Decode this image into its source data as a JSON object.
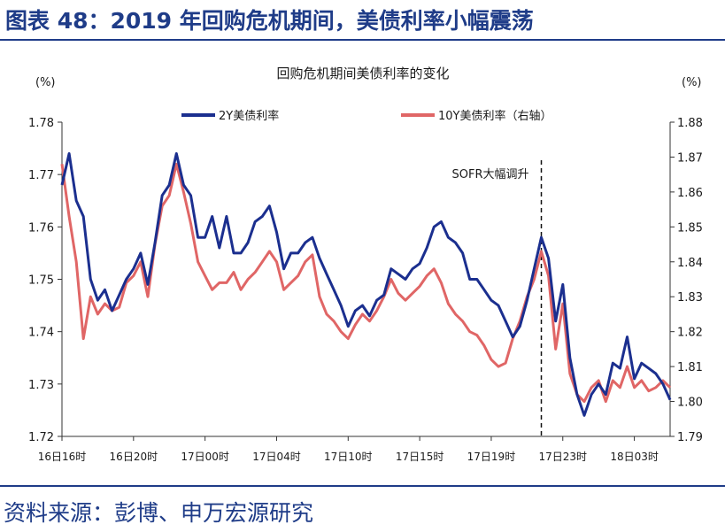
{
  "figure_title": "图表 48：2019 年回购危机期间，美债利率小幅震荡",
  "source_text": "资料来源：彭博、申万宏源研究",
  "colors": {
    "title_blue": "#1f3c88",
    "series_2y": "#1b2f8f",
    "series_10y": "#e06666"
  },
  "chart_data": {
    "type": "line",
    "title": "回购危机期间美债利率的变化",
    "y_left_unit": "(%)",
    "y_right_unit": "(%)",
    "y_left_range": [
      1.72,
      1.78
    ],
    "y_left_ticks": [
      "1.72",
      "1.73",
      "1.74",
      "1.75",
      "1.76",
      "1.77",
      "1.78"
    ],
    "y_right_range": [
      1.79,
      1.88
    ],
    "y_right_ticks": [
      "1.79",
      "1.80",
      "1.81",
      "1.82",
      "1.83",
      "1.84",
      "1.85",
      "1.86",
      "1.87",
      "1.88"
    ],
    "x_range": [
      0,
      85
    ],
    "x_tick_positions": [
      0,
      10,
      20,
      30,
      40,
      50,
      60,
      70,
      80
    ],
    "x_tick_labels": [
      "16日16时",
      "16日20时",
      "17日00时",
      "17日04时",
      "17日10时",
      "17日15时",
      "17日19时",
      "17日23时",
      "18日03时"
    ],
    "legend_position": "top",
    "annotation": {
      "label": "SOFR大幅调升",
      "x": 67
    },
    "series": [
      {
        "name": "2Y美债利率",
        "axis": "left",
        "x": [
          0,
          1,
          2,
          3,
          4,
          5,
          6,
          7,
          8,
          9,
          10,
          11,
          12,
          13,
          14,
          15,
          16,
          17,
          18,
          19,
          20,
          21,
          22,
          23,
          24,
          25,
          26,
          27,
          28,
          29,
          30,
          31,
          32,
          33,
          34,
          35,
          36,
          37,
          38,
          39,
          40,
          41,
          42,
          43,
          44,
          45,
          46,
          47,
          48,
          49,
          50,
          51,
          52,
          53,
          54,
          55,
          56,
          57,
          58,
          59,
          60,
          61,
          62,
          63,
          64,
          65,
          66,
          67,
          68,
          69,
          70,
          71,
          72,
          73,
          74,
          75,
          76,
          77,
          78,
          79,
          80,
          81,
          82,
          83,
          84,
          85
        ],
        "values": [
          1.768,
          1.774,
          1.765,
          1.762,
          1.75,
          1.746,
          1.748,
          1.744,
          1.747,
          1.75,
          1.752,
          1.755,
          1.749,
          1.757,
          1.766,
          1.768,
          1.774,
          1.768,
          1.766,
          1.758,
          1.758,
          1.762,
          1.756,
          1.762,
          1.755,
          1.755,
          1.757,
          1.761,
          1.762,
          1.764,
          1.759,
          1.752,
          1.755,
          1.755,
          1.757,
          1.758,
          1.754,
          1.751,
          1.748,
          1.745,
          1.741,
          1.744,
          1.745,
          1.743,
          1.746,
          1.747,
          1.752,
          1.751,
          1.75,
          1.752,
          1.753,
          1.756,
          1.76,
          1.761,
          1.758,
          1.757,
          1.755,
          1.75,
          1.75,
          1.748,
          1.746,
          1.745,
          1.742,
          1.739,
          1.741,
          1.746,
          1.752,
          1.758,
          1.754,
          1.742,
          1.749,
          1.735,
          1.728,
          1.724,
          1.728,
          1.73,
          1.728,
          1.734,
          1.733,
          1.739,
          1.731,
          1.734,
          1.733,
          1.732,
          1.73,
          1.727
        ]
      },
      {
        "name": "10Y美债利率（右轴）",
        "axis": "right",
        "x": [
          0,
          1,
          2,
          3,
          4,
          5,
          6,
          7,
          8,
          9,
          10,
          11,
          12,
          13,
          14,
          15,
          16,
          17,
          18,
          19,
          20,
          21,
          22,
          23,
          24,
          25,
          26,
          27,
          28,
          29,
          30,
          31,
          32,
          33,
          34,
          35,
          36,
          37,
          38,
          39,
          40,
          41,
          42,
          43,
          44,
          45,
          46,
          47,
          48,
          49,
          50,
          51,
          52,
          53,
          54,
          55,
          56,
          57,
          58,
          59,
          60,
          61,
          62,
          63,
          64,
          65,
          66,
          67,
          68,
          69,
          70,
          71,
          72,
          73,
          74,
          75,
          76,
          77,
          78,
          79,
          80,
          81,
          82,
          83,
          84,
          85
        ],
        "values": [
          1.868,
          1.853,
          1.84,
          1.818,
          1.83,
          1.825,
          1.828,
          1.826,
          1.827,
          1.834,
          1.836,
          1.84,
          1.83,
          1.845,
          1.856,
          1.859,
          1.868,
          1.86,
          1.851,
          1.84,
          1.836,
          1.832,
          1.834,
          1.834,
          1.837,
          1.832,
          1.835,
          1.837,
          1.84,
          1.843,
          1.84,
          1.832,
          1.834,
          1.836,
          1.84,
          1.842,
          1.83,
          1.825,
          1.823,
          1.82,
          1.818,
          1.822,
          1.825,
          1.823,
          1.826,
          1.83,
          1.835,
          1.831,
          1.829,
          1.831,
          1.833,
          1.836,
          1.838,
          1.834,
          1.828,
          1.825,
          1.823,
          1.82,
          1.819,
          1.816,
          1.812,
          1.81,
          1.811,
          1.818,
          1.823,
          1.83,
          1.835,
          1.843,
          1.836,
          1.815,
          1.828,
          1.808,
          1.802,
          1.8,
          1.804,
          1.806,
          1.8,
          1.806,
          1.804,
          1.81,
          1.804,
          1.806,
          1.803,
          1.804,
          1.806,
          1.804
        ]
      }
    ]
  }
}
